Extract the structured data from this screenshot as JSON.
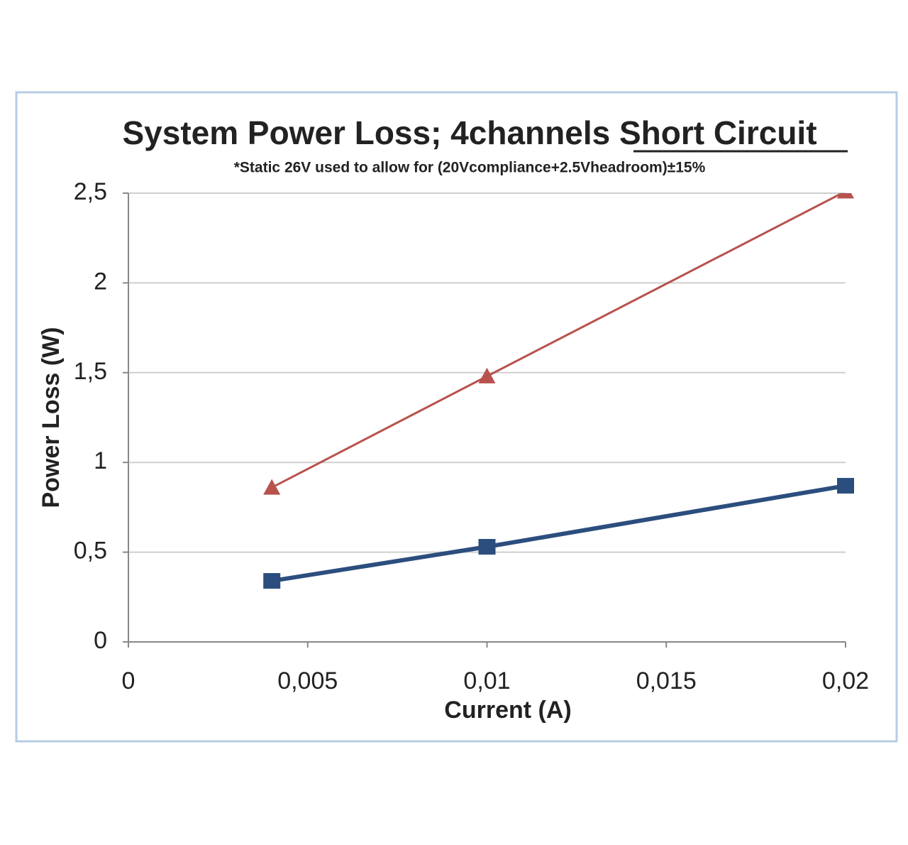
{
  "chart_data": {
    "type": "line",
    "title": "System Power Loss; 4channels Short Circuit",
    "subtitle": "*Static 26V used to allow for (20Vcompliance+2.5Vheadroom)±15%",
    "x_label": "Current (A)",
    "y_label": "Power Loss (W)",
    "xlim": [
      0,
      0.02
    ],
    "xticks": [
      0,
      {
        "value": 0.005,
        "label": "0,005"
      },
      {
        "value": 0.01,
        "label": "0,01"
      },
      {
        "value": 0.015,
        "label": "0,015"
      },
      {
        "value": 0.02,
        "label": "0,02"
      }
    ],
    "ylim": [
      0,
      2.5
    ],
    "yticks": [
      0,
      {
        "value": 0.5,
        "label": "0,5"
      },
      1,
      {
        "value": 1.5,
        "label": "1,5"
      },
      2,
      {
        "value": 2.5,
        "label": "2,5"
      }
    ],
    "grid": true,
    "series": [
      {
        "color": "#2c4e7e",
        "marker": "square",
        "x": [
          0.004,
          0.01,
          0.02
        ],
        "values": [
          0.34,
          0.53,
          0.87
        ]
      },
      {
        "color": "#b8524d",
        "marker": "triangle",
        "x": [
          0.004,
          0.01,
          0.02
        ],
        "values": [
          0.86,
          1.48,
          2.51
        ]
      }
    ]
  }
}
